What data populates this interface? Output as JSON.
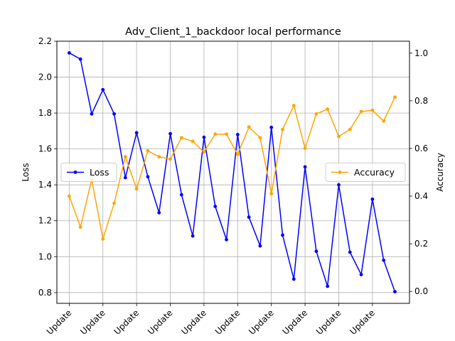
{
  "chart_data": {
    "type": "line",
    "title": "Adv_Client_1_backdoor local performance",
    "xlabel": "",
    "y_left_label": "Loss",
    "y_right_label": "Accuracy",
    "grid": true,
    "x": [
      1,
      2,
      3,
      4,
      5,
      6,
      7,
      8,
      9,
      10,
      11,
      12,
      13,
      14,
      15,
      16,
      17,
      18,
      19,
      20,
      21,
      22,
      23,
      24,
      25,
      26,
      27,
      28,
      29,
      30
    ],
    "x_tick_positions": [
      1,
      4,
      7,
      10,
      13,
      16,
      19,
      22,
      25,
      28
    ],
    "x_tick_labels": [
      "Update",
      "Update",
      "Update",
      "Update",
      "Update",
      "Update",
      "Update",
      "Update",
      "Update",
      "Update"
    ],
    "y_left_lim": [
      0.74,
      2.2
    ],
    "y_left_ticks": [
      0.8,
      1.0,
      1.2,
      1.4,
      1.6,
      1.8,
      2.0,
      2.2
    ],
    "y_right_lim": [
      -0.05,
      1.05
    ],
    "y_right_ticks": [
      0.0,
      0.2,
      0.4,
      0.6,
      0.8,
      1.0
    ],
    "series": [
      {
        "name": "Loss",
        "axis": "left",
        "color": "#0000ff",
        "legend_position": "center-left",
        "values": [
          2.135,
          2.1,
          1.795,
          1.93,
          1.795,
          1.44,
          1.69,
          1.445,
          1.245,
          1.685,
          1.345,
          1.115,
          1.665,
          1.28,
          1.095,
          1.68,
          1.22,
          1.06,
          1.72,
          1.12,
          0.875,
          1.5,
          1.03,
          0.835,
          1.4,
          1.025,
          0.9,
          1.32,
          0.98,
          0.805
        ]
      },
      {
        "name": "Accuracy",
        "axis": "right",
        "color": "#ffa500",
        "legend_position": "center-right",
        "values": [
          0.4,
          0.27,
          0.47,
          0.22,
          0.37,
          0.565,
          0.43,
          0.59,
          0.565,
          0.555,
          0.645,
          0.63,
          0.585,
          0.66,
          0.66,
          0.575,
          0.69,
          0.645,
          0.41,
          0.68,
          0.78,
          0.6,
          0.745,
          0.765,
          0.65,
          0.68,
          0.755,
          0.76,
          0.715,
          0.815
        ]
      }
    ]
  }
}
